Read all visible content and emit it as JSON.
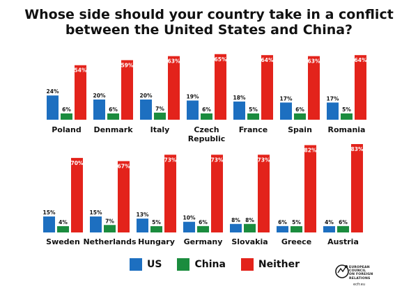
{
  "title": {
    "line1": "Whose side should your country take in a conflict",
    "line2": "between the United States and China?"
  },
  "colors": {
    "us": "#1d6fc0",
    "china": "#1b8c3e",
    "neither": "#e3231b",
    "text": "#111111"
  },
  "legend": {
    "us": "US",
    "china": "China",
    "neither": "Neither"
  },
  "logo": {
    "icon": "ecfr-logo-icon",
    "lines": [
      "EUROPEAN",
      "COUNCIL",
      "ON FOREIGN",
      "RELATIONS"
    ],
    "url": "ecfr.eu"
  },
  "chart_data": [
    {
      "type": "bar",
      "categories": [
        "Poland",
        "Denmark",
        "Italy",
        "Czech Republic",
        "France",
        "Spain",
        "Romania"
      ],
      "series": [
        {
          "name": "US",
          "values": [
            24,
            20,
            20,
            19,
            18,
            17,
            17
          ]
        },
        {
          "name": "China",
          "values": [
            6,
            6,
            7,
            6,
            5,
            6,
            5
          ]
        },
        {
          "name": "Neither",
          "values": [
            54,
            59,
            63,
            65,
            64,
            63,
            64
          ]
        }
      ],
      "value_suffix": "%"
    },
    {
      "type": "bar",
      "categories": [
        "Sweden",
        "Netherlands",
        "Hungary",
        "Germany",
        "Slovakia",
        "Greece",
        "Austria"
      ],
      "series": [
        {
          "name": "US",
          "values": [
            15,
            15,
            13,
            10,
            8,
            6,
            4
          ]
        },
        {
          "name": "China",
          "values": [
            4,
            7,
            5,
            6,
            8,
            5,
            6
          ]
        },
        {
          "name": "Neither",
          "values": [
            70,
            67,
            73,
            73,
            73,
            82,
            83
          ]
        }
      ],
      "value_suffix": "%"
    }
  ]
}
